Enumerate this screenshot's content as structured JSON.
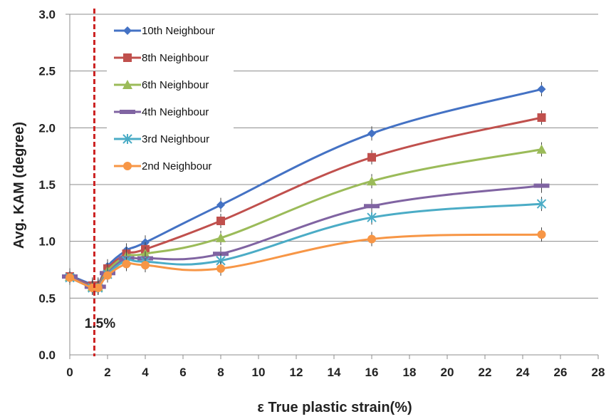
{
  "chart_data": {
    "type": "line",
    "xlabel": "ε True plastic strain(%)",
    "ylabel": "Avg. KAM (degree)",
    "xlim": [
      0,
      28
    ],
    "ylim": [
      0.0,
      3.0
    ],
    "x_ticks": [
      "0",
      "2",
      "4",
      "6",
      "8",
      "10",
      "12",
      "14",
      "16",
      "18",
      "20",
      "22",
      "24",
      "26",
      "28"
    ],
    "y_ticks": [
      "0.0",
      "0.5",
      "1.0",
      "1.5",
      "2.0",
      "2.5",
      "3.0"
    ],
    "grid": "horizontal",
    "legend_position": "top-left",
    "annotation": {
      "text": "1.5%",
      "x": 1.3,
      "line_color": "#CC2222",
      "line_style": "dashed"
    },
    "series": [
      {
        "name": "10th Neighbour",
        "color": "#4472C4",
        "marker": "diamond",
        "x": [
          0,
          1.2,
          1.5,
          2,
          3,
          4,
          8,
          16,
          25
        ],
        "y": [
          0.7,
          0.62,
          0.62,
          0.78,
          0.92,
          0.99,
          1.32,
          1.95,
          2.34
        ]
      },
      {
        "name": "8th Neighbour",
        "color": "#C0504D",
        "marker": "square",
        "x": [
          0,
          1.2,
          1.5,
          2,
          3,
          4,
          8,
          16,
          25
        ],
        "y": [
          0.69,
          0.61,
          0.61,
          0.76,
          0.89,
          0.93,
          1.18,
          1.74,
          2.09
        ]
      },
      {
        "name": "6th Neighbour",
        "color": "#9BBB59",
        "marker": "triangle",
        "x": [
          0,
          1.2,
          1.5,
          2,
          3,
          4,
          8,
          16,
          25
        ],
        "y": [
          0.69,
          0.6,
          0.6,
          0.74,
          0.87,
          0.89,
          1.03,
          1.53,
          1.81
        ]
      },
      {
        "name": "4th Neighbour",
        "color": "#8064A2",
        "marker": "dash",
        "x": [
          0,
          1.2,
          1.5,
          2,
          3,
          4,
          8,
          16,
          25
        ],
        "y": [
          0.69,
          0.6,
          0.6,
          0.72,
          0.85,
          0.85,
          0.89,
          1.31,
          1.49
        ]
      },
      {
        "name": "3rd Neighbour",
        "color": "#4BACC6",
        "marker": "star",
        "x": [
          0,
          1.2,
          1.5,
          2,
          3,
          4,
          8,
          16,
          25
        ],
        "y": [
          0.68,
          0.59,
          0.59,
          0.71,
          0.83,
          0.82,
          0.83,
          1.21,
          1.33
        ]
      },
      {
        "name": "2nd Neighbour",
        "color": "#F79646",
        "marker": "circle",
        "x": [
          0,
          1.2,
          1.5,
          2,
          3,
          4,
          8,
          16,
          25
        ],
        "y": [
          0.68,
          0.59,
          0.59,
          0.7,
          0.8,
          0.79,
          0.76,
          1.02,
          1.06
        ]
      }
    ]
  }
}
